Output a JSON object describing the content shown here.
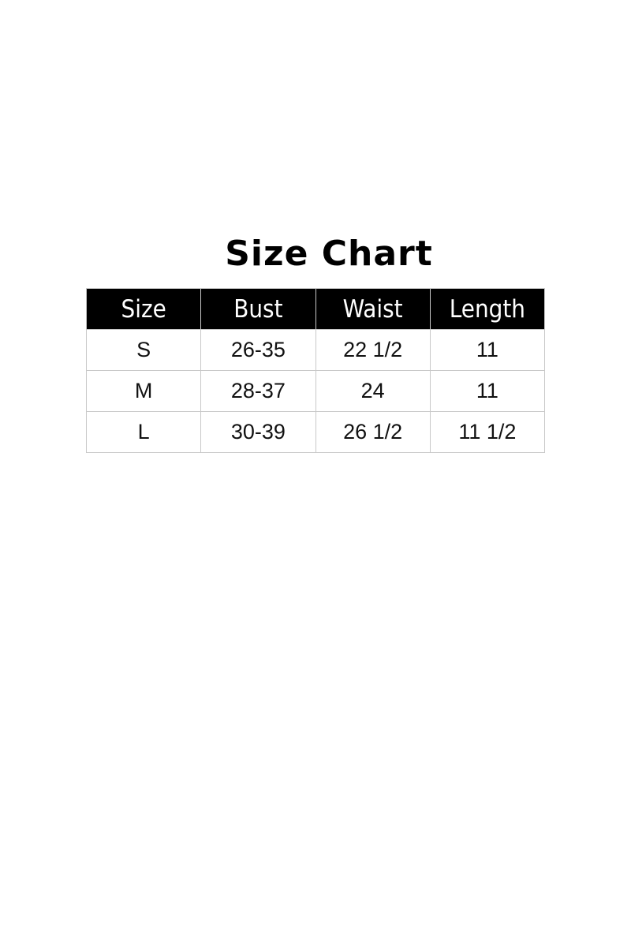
{
  "title": "Size Chart",
  "table": {
    "headers": [
      "Size",
      "Bust",
      "Waist",
      "Length"
    ],
    "rows": [
      [
        "S",
        "26-35",
        "22 1/2",
        "11"
      ],
      [
        "M",
        "28-37",
        "24",
        "11"
      ],
      [
        "L",
        "30-39",
        "26 1/2",
        "11 1/2"
      ]
    ]
  },
  "colors": {
    "header_bg": "#000000",
    "header_text": "#ffffff",
    "border": "#c8c8c8"
  }
}
